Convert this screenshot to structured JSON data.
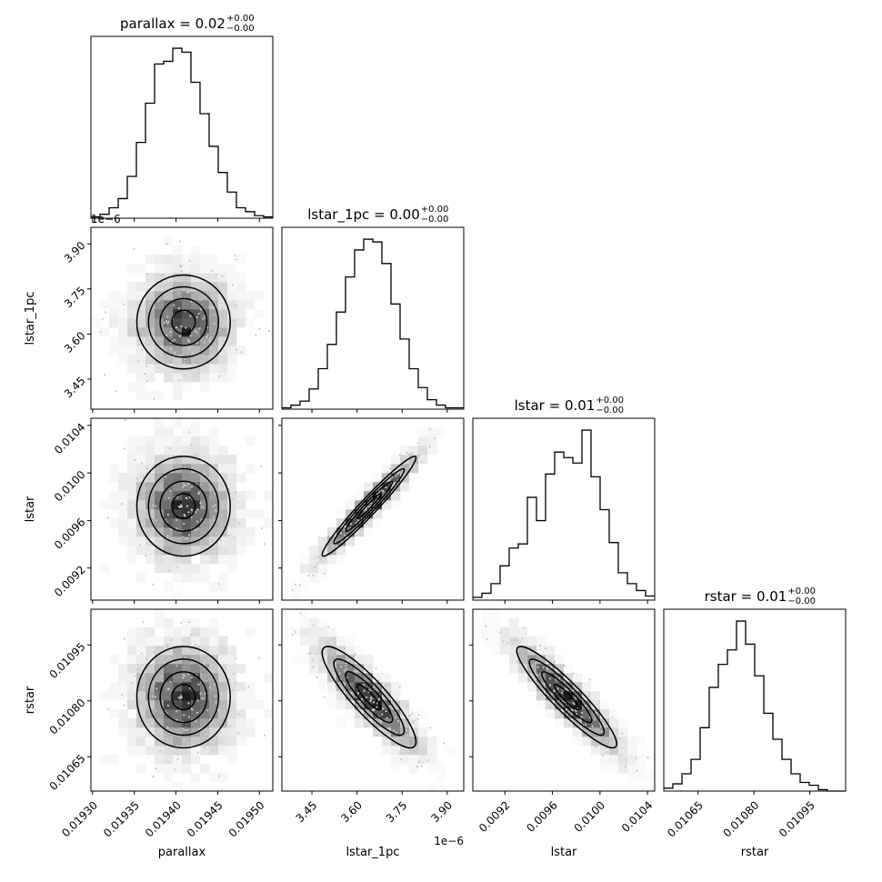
{
  "chart_data": {
    "type": "corner",
    "params": [
      "parallax",
      "lstar_1pc",
      "lstar",
      "rstar"
    ],
    "titles": [
      {
        "param": "parallax",
        "base": "parallax = 0.02",
        "plus": "+0.00",
        "minus": "−0.00"
      },
      {
        "param": "lstar_1pc",
        "base": "lstar_1pc = 0.00",
        "plus": "+0.00",
        "minus": "−0.00"
      },
      {
        "param": "lstar",
        "base": "lstar = 0.01",
        "plus": "+0.00",
        "minus": "−0.00"
      },
      {
        "param": "rstar",
        "base": "rstar = 0.01",
        "plus": "+0.00",
        "minus": "−0.00"
      }
    ],
    "xlabels": [
      "parallax",
      "lstar_1pc",
      "lstar",
      "rstar"
    ],
    "ylabels": [
      "lstar_1pc",
      "lstar",
      "rstar"
    ],
    "axes": {
      "parallax": {
        "range": [
          0.019298,
          0.019516
        ],
        "ticks": [
          0.0193,
          0.01935,
          0.0194,
          0.01945,
          0.0195
        ],
        "ticklabels": [
          "0.01930",
          "0.01935",
          "0.01940",
          "0.01945",
          "0.01950"
        ],
        "mean": 0.019409,
        "sd": 2.8e-05
      },
      "lstar_1pc": {
        "range": [
          3.35,
          3.955
        ],
        "ticks": [
          3.45,
          3.6,
          3.75,
          3.9
        ],
        "ticklabels": [
          "3.45",
          "3.60",
          "3.75",
          "3.90"
        ],
        "offset": "1e−6",
        "mean": 3.64,
        "sd": 0.078
      },
      "lstar": {
        "range": [
          0.00893,
          0.01046
        ],
        "ticks": [
          0.0092,
          0.0096,
          0.01,
          0.0104
        ],
        "ticklabels": [
          "0.0092",
          "0.0096",
          "0.0100",
          "0.0104"
        ],
        "mean": 0.00972,
        "sd": 0.00021
      },
      "rstar": {
        "range": [
          0.010558,
          0.011046
        ],
        "ticks": [
          0.01065,
          0.0108,
          0.01095
        ],
        "ticklabels": [
          "0.01065",
          "0.01080",
          "0.01095"
        ],
        "mean": 0.01081,
        "sd": 6.8e-05
      }
    },
    "correlations": {
      "0-1": 0.0,
      "0-2": 0.0,
      "0-3": 0.0,
      "1-2": 0.97,
      "1-3": -0.88,
      "2-3": -0.92
    },
    "histograms": [
      {
        "param": "parallax",
        "counts": [
          1,
          3,
          8,
          15,
          32,
          58,
          88,
          118,
          120,
          130,
          127,
          104,
          80,
          55,
          35,
          20,
          8,
          5,
          2,
          1
        ]
      },
      {
        "param": "lstar_1pc",
        "counts": [
          1,
          3,
          6,
          15,
          30,
          48,
          72,
          98,
          118,
          126,
          124,
          108,
          78,
          52,
          30,
          16,
          7,
          3,
          1,
          1
        ]
      },
      {
        "param": "lstar",
        "counts": [
          2,
          5,
          12,
          25,
          38,
          41,
          75,
          58,
          92,
          108,
          104,
          100,
          124,
          90,
          66,
          42,
          20,
          12,
          7,
          3
        ]
      },
      {
        "param": "rstar",
        "counts": [
          2,
          5,
          12,
          22,
          44,
          72,
          88,
          98,
          118,
          102,
          80,
          54,
          36,
          22,
          12,
          6,
          4,
          1,
          0,
          0
        ]
      }
    ]
  }
}
